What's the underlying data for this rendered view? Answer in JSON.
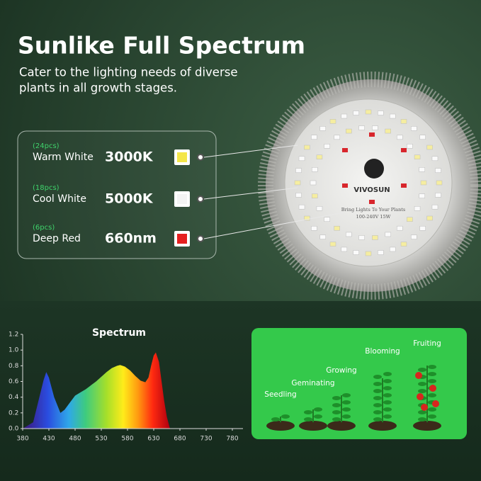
{
  "header": {
    "title": "Sunlike Full Spectrum",
    "subtitle_lines": [
      "Cater to the lighting needs of diverse",
      "plants in all growth stages."
    ]
  },
  "legend": [
    {
      "count": "(24pcs)",
      "name": "Warm White",
      "value": "3000K"
    },
    {
      "count": "(18pcs)",
      "name": "Cool White",
      "value": "5000K"
    },
    {
      "count": "(6pcs)",
      "name": "Deep Red",
      "value": "660nm"
    }
  ],
  "lamp": {
    "brand": "VIVOSUN",
    "slogan": "Bring Lights To Your Plants",
    "rating": "100-240V  15W"
  },
  "chart_data": {
    "type": "area",
    "title": "Spectrum",
    "x": [
      380,
      400,
      410,
      420,
      425,
      430,
      440,
      452,
      460,
      470,
      480,
      490,
      500,
      510,
      520,
      530,
      540,
      550,
      560,
      566,
      575,
      585,
      595,
      605,
      614,
      620,
      625,
      630,
      634,
      640,
      645,
      650,
      655,
      661,
      670,
      680,
      780
    ],
    "values": [
      0,
      0.08,
      0.35,
      0.62,
      0.72,
      0.65,
      0.4,
      0.2,
      0.24,
      0.33,
      0.42,
      0.46,
      0.5,
      0.55,
      0.6,
      0.66,
      0.72,
      0.77,
      0.8,
      0.81,
      0.79,
      0.74,
      0.67,
      0.61,
      0.59,
      0.65,
      0.8,
      0.93,
      0.97,
      0.85,
      0.6,
      0.35,
      0.15,
      0,
      0,
      0,
      0
    ],
    "xlim": [
      380,
      780
    ],
    "ylim": [
      0,
      1.2
    ],
    "xticks": [
      380,
      430,
      480,
      530,
      580,
      630,
      680,
      730,
      780
    ],
    "yticks": [
      {
        "value": 0,
        "label": "0.0"
      },
      0.2,
      0.4,
      0.6,
      0.8,
      {
        "value": 1,
        "label": "1.0"
      },
      1.2
    ]
  },
  "stages": [
    "Seedling",
    "Geminating",
    "Growing",
    "Blooming",
    "Fruiting"
  ]
}
